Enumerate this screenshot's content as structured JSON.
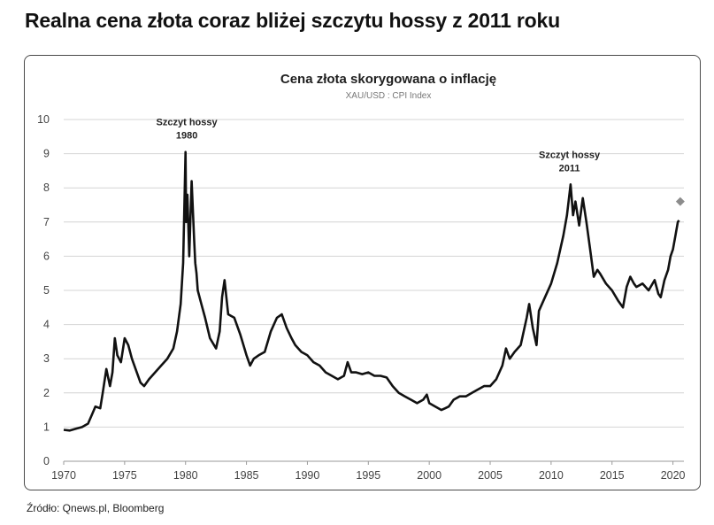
{
  "headline": "Realna cena złota coraz bliżej szczytu hossy z 2011 roku",
  "source": "Źródło: Qnews.pl, Bloomberg",
  "chart_data": {
    "type": "line",
    "title": "Cena złota skorygowana o inflację",
    "subtitle": "XAU/USD : CPI Index",
    "xlabel": "",
    "ylabel": "",
    "xlim": [
      1970,
      2020.9
    ],
    "ylim": [
      0,
      10
    ],
    "xticks": [
      1970,
      1975,
      1980,
      1985,
      1990,
      1995,
      2000,
      2005,
      2010,
      2015,
      2020
    ],
    "yticks": [
      0,
      1,
      2,
      3,
      4,
      5,
      6,
      7,
      8,
      9,
      10
    ],
    "grid": "horizontal",
    "line_color": "#111111",
    "marker_color": "#8c8c8c",
    "series": [
      {
        "x": [
          1970.0,
          1970.5,
          1971.0,
          1971.5,
          1972.0,
          1972.3,
          1972.6,
          1973.0,
          1973.2,
          1973.5,
          1973.8,
          1974.0,
          1974.2,
          1974.4,
          1974.7,
          1975.0,
          1975.3,
          1975.6,
          1976.0,
          1976.3,
          1976.6,
          1977.0,
          1977.5,
          1978.0,
          1978.5,
          1979.0,
          1979.3,
          1979.6,
          1979.8,
          1980.0,
          1980.05,
          1980.15,
          1980.3,
          1980.5,
          1980.7,
          1980.8,
          1980.9,
          1981.0,
          1981.3,
          1981.6,
          1982.0,
          1982.5,
          1982.8,
          1983.0,
          1983.2,
          1983.5,
          1984.0,
          1984.5,
          1985.0,
          1985.3,
          1985.6,
          1986.0,
          1986.5,
          1987.0,
          1987.5,
          1987.9,
          1988.3,
          1988.7,
          1989.0,
          1989.5,
          1990.0,
          1990.5,
          1991.0,
          1991.5,
          1992.0,
          1992.5,
          1993.0,
          1993.3,
          1993.6,
          1994.0,
          1994.5,
          1995.0,
          1995.5,
          1996.0,
          1996.5,
          1997.0,
          1997.5,
          1998.0,
          1998.5,
          1999.0,
          1999.5,
          1999.8,
          2000.0,
          2000.5,
          2001.0,
          2001.3,
          2001.6,
          2002.0,
          2002.5,
          2003.0,
          2003.5,
          2004.0,
          2004.5,
          2005.0,
          2005.5,
          2006.0,
          2006.3,
          2006.6,
          2007.0,
          2007.5,
          2008.0,
          2008.2,
          2008.5,
          2008.8,
          2009.0,
          2009.5,
          2010.0,
          2010.5,
          2011.0,
          2011.3,
          2011.6,
          2011.8,
          2012.0,
          2012.3,
          2012.6,
          2012.9,
          2013.2,
          2013.5,
          2013.8,
          2014.0,
          2014.5,
          2015.0,
          2015.5,
          2015.9,
          2016.2,
          2016.5,
          2016.8,
          2017.0,
          2017.5,
          2018.0,
          2018.5,
          2018.8,
          2019.0,
          2019.3,
          2019.6,
          2019.8,
          2020.0,
          2020.2,
          2020.4,
          2020.5
        ],
        "y": [
          0.92,
          0.9,
          0.95,
          1.0,
          1.1,
          1.35,
          1.6,
          1.55,
          2.0,
          2.7,
          2.2,
          2.6,
          3.6,
          3.1,
          2.9,
          3.6,
          3.4,
          3.0,
          2.6,
          2.3,
          2.2,
          2.4,
          2.6,
          2.8,
          3.0,
          3.3,
          3.8,
          4.6,
          5.8,
          9.05,
          7.0,
          7.8,
          6.0,
          8.2,
          6.5,
          5.8,
          5.5,
          5.0,
          4.6,
          4.2,
          3.6,
          3.3,
          3.8,
          4.8,
          5.3,
          4.3,
          4.2,
          3.7,
          3.1,
          2.8,
          3.0,
          3.1,
          3.2,
          3.8,
          4.2,
          4.3,
          3.9,
          3.6,
          3.4,
          3.2,
          3.1,
          2.9,
          2.8,
          2.6,
          2.5,
          2.4,
          2.5,
          2.9,
          2.6,
          2.6,
          2.55,
          2.6,
          2.5,
          2.5,
          2.45,
          2.2,
          2.0,
          1.9,
          1.8,
          1.7,
          1.8,
          1.95,
          1.7,
          1.6,
          1.5,
          1.55,
          1.6,
          1.8,
          1.9,
          1.9,
          2.0,
          2.1,
          2.2,
          2.2,
          2.4,
          2.8,
          3.3,
          3.0,
          3.2,
          3.4,
          4.2,
          4.6,
          3.9,
          3.4,
          4.4,
          4.8,
          5.2,
          5.8,
          6.6,
          7.2,
          8.1,
          7.2,
          7.6,
          6.9,
          7.7,
          7.0,
          6.2,
          5.4,
          5.6,
          5.5,
          5.2,
          5.0,
          4.7,
          4.5,
          5.1,
          5.4,
          5.2,
          5.1,
          5.2,
          5.0,
          5.3,
          4.9,
          4.8,
          5.3,
          5.6,
          6.0,
          6.2,
          6.6,
          7.0,
          7.05
        ],
        "end_marker": {
          "x": 2020.6,
          "y": 7.6
        }
      }
    ],
    "annotations": [
      {
        "line1": "Szczyt hossy",
        "line2": "1980",
        "x": 1980.1,
        "y": 9.05
      },
      {
        "line1": "Szczyt hossy",
        "line2": "2011",
        "x": 2011.5,
        "y": 8.1
      }
    ]
  }
}
